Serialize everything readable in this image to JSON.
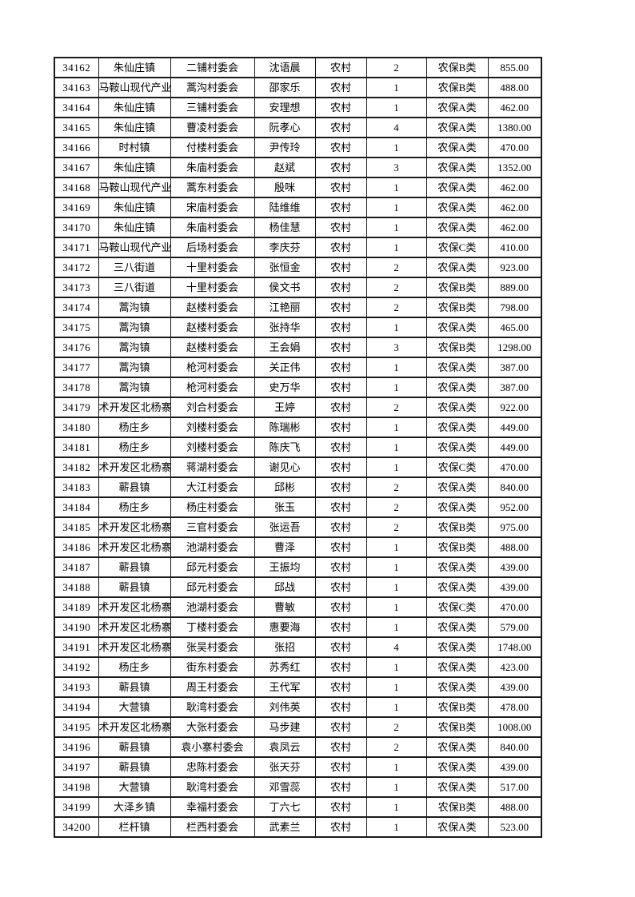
{
  "document": {
    "background_color": "#ffffff",
    "text_color": "#000000",
    "border_color": "#1a1a1a"
  },
  "table": {
    "columns": [
      {
        "key": "id"
      },
      {
        "key": "town"
      },
      {
        "key": "village"
      },
      {
        "key": "person"
      },
      {
        "key": "type"
      },
      {
        "key": "count"
      },
      {
        "key": "category"
      },
      {
        "key": "amount"
      }
    ],
    "rows": [
      [
        "34162",
        "朱仙庄镇",
        "二铺村委会",
        "沈语晨",
        "农村",
        "2",
        "农保B类",
        "855.00"
      ],
      [
        "34163",
        "马鞍山现代产业",
        "蒿沟村委会",
        "邵家乐",
        "农村",
        "1",
        "农保B类",
        "488.00"
      ],
      [
        "34164",
        "朱仙庄镇",
        "三铺村委会",
        "安理想",
        "农村",
        "1",
        "农保A类",
        "462.00"
      ],
      [
        "34165",
        "朱仙庄镇",
        "曹凌村委会",
        "阮孝心",
        "农村",
        "4",
        "农保A类",
        "1380.00"
      ],
      [
        "34166",
        "时村镇",
        "付楼村委会",
        "尹传玲",
        "农村",
        "1",
        "农保A类",
        "470.00"
      ],
      [
        "34167",
        "朱仙庄镇",
        "朱庙村委会",
        "赵斌",
        "农村",
        "3",
        "农保A类",
        "1352.00"
      ],
      [
        "34168",
        "马鞍山现代产业",
        "蒿东村委会",
        "殷咪",
        "农村",
        "1",
        "农保A类",
        "462.00"
      ],
      [
        "34169",
        "朱仙庄镇",
        "宋庙村委会",
        "陆维维",
        "农村",
        "1",
        "农保A类",
        "462.00"
      ],
      [
        "34170",
        "朱仙庄镇",
        "朱庙村委会",
        "杨佳慧",
        "农村",
        "1",
        "农保A类",
        "462.00"
      ],
      [
        "34171",
        "马鞍山现代产业",
        "后场村委会",
        "李庆芬",
        "农村",
        "1",
        "农保C类",
        "410.00"
      ],
      [
        "34172",
        "三八街道",
        "十里村委会",
        "张恒金",
        "农村",
        "2",
        "农保A类",
        "923.00"
      ],
      [
        "34173",
        "三八街道",
        "十里村委会",
        "侯文书",
        "农村",
        "2",
        "农保B类",
        "889.00"
      ],
      [
        "34174",
        "蒿沟镇",
        "赵楼村委会",
        "江艳丽",
        "农村",
        "2",
        "农保B类",
        "798.00"
      ],
      [
        "34175",
        "蒿沟镇",
        "赵楼村委会",
        "张持华",
        "农村",
        "1",
        "农保A类",
        "465.00"
      ],
      [
        "34176",
        "蒿沟镇",
        "赵楼村委会",
        "王会娟",
        "农村",
        "3",
        "农保B类",
        "1298.00"
      ],
      [
        "34177",
        "蒿沟镇",
        "枪河村委会",
        "关正伟",
        "农村",
        "1",
        "农保A类",
        "387.00"
      ],
      [
        "34178",
        "蒿沟镇",
        "枪河村委会",
        "史万华",
        "农村",
        "1",
        "农保A类",
        "387.00"
      ],
      [
        "34179",
        "术开发区北杨寨",
        "刘合村委会",
        "王婷",
        "农村",
        "2",
        "农保A类",
        "922.00"
      ],
      [
        "34180",
        "杨庄乡",
        "刘楼村委会",
        "陈瑞彬",
        "农村",
        "1",
        "农保A类",
        "449.00"
      ],
      [
        "34181",
        "杨庄乡",
        "刘楼村委会",
        "陈庆飞",
        "农村",
        "1",
        "农保A类",
        "449.00"
      ],
      [
        "34182",
        "术开发区北杨寨",
        "蒋湖村委会",
        "谢见心",
        "农村",
        "1",
        "农保C类",
        "470.00"
      ],
      [
        "34183",
        "蕲县镇",
        "大江村委会",
        "邱彬",
        "农村",
        "2",
        "农保A类",
        "840.00"
      ],
      [
        "34184",
        "杨庄乡",
        "杨庄村委会",
        "张玉",
        "农村",
        "2",
        "农保A类",
        "952.00"
      ],
      [
        "34185",
        "术开发区北杨寨",
        "三官村委会",
        "张运吾",
        "农村",
        "2",
        "农保B类",
        "975.00"
      ],
      [
        "34186",
        "术开发区北杨寨",
        "池湖村委会",
        "曹泽",
        "农村",
        "1",
        "农保B类",
        "488.00"
      ],
      [
        "34187",
        "蕲县镇",
        "邱元村委会",
        "王振均",
        "农村",
        "1",
        "农保A类",
        "439.00"
      ],
      [
        "34188",
        "蕲县镇",
        "邱元村委会",
        "邱战",
        "农村",
        "1",
        "农保A类",
        "439.00"
      ],
      [
        "34189",
        "术开发区北杨寨",
        "池湖村委会",
        "曹敏",
        "农村",
        "1",
        "农保C类",
        "470.00"
      ],
      [
        "34190",
        "术开发区北杨寨",
        "丁楼村委会",
        "惠要海",
        "农村",
        "1",
        "农保A类",
        "579.00"
      ],
      [
        "34191",
        "术开发区北杨寨",
        "张吴村委会",
        "张招",
        "农村",
        "4",
        "农保A类",
        "1748.00"
      ],
      [
        "34192",
        "杨庄乡",
        "街东村委会",
        "苏秀红",
        "农村",
        "1",
        "农保A类",
        "423.00"
      ],
      [
        "34193",
        "蕲县镇",
        "周王村委会",
        "王代军",
        "农村",
        "1",
        "农保A类",
        "439.00"
      ],
      [
        "34194",
        "大营镇",
        "耿湾村委会",
        "刘伟英",
        "农村",
        "1",
        "农保B类",
        "478.00"
      ],
      [
        "34195",
        "术开发区北杨寨",
        "大张村委会",
        "马步建",
        "农村",
        "2",
        "农保B类",
        "1008.00"
      ],
      [
        "34196",
        "蕲县镇",
        "袁小寨村委会",
        "袁凤云",
        "农村",
        "2",
        "农保A类",
        "840.00"
      ],
      [
        "34197",
        "蕲县镇",
        "忠陈村委会",
        "张天芬",
        "农村",
        "1",
        "农保A类",
        "439.00"
      ],
      [
        "34198",
        "大营镇",
        "耿湾村委会",
        "邓雪蕊",
        "农村",
        "1",
        "农保A类",
        "517.00"
      ],
      [
        "34199",
        "大泽乡镇",
        "幸福村委会",
        "丁六七",
        "农村",
        "1",
        "农保B类",
        "488.00"
      ],
      [
        "34200",
        "栏杆镇",
        "栏西村委会",
        "武素兰",
        "农村",
        "1",
        "农保A类",
        "523.00"
      ]
    ]
  }
}
